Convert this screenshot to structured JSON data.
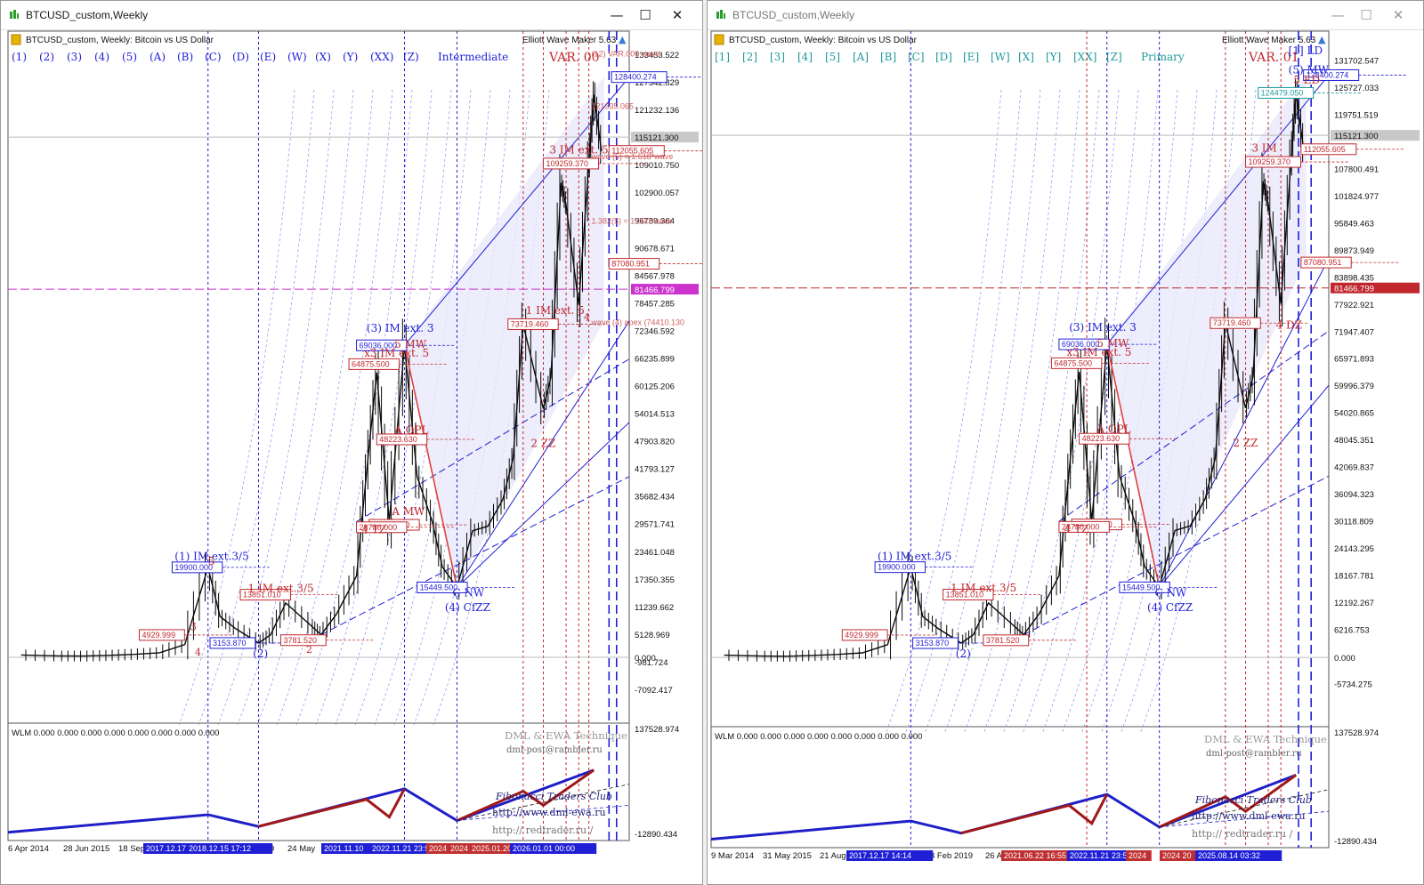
{
  "left": {
    "window_title": "BTCUSD_custom,Weekly",
    "chart_header": "BTCUSD_custom, Weekly:  Bitcoin vs US Dollar",
    "indicator_name": "Elliott Wave Maker 5.63",
    "wave_buttons": [
      "(1)",
      "(2)",
      "(3)",
      "(4)",
      "(5)",
      "(A)",
      "(B)",
      "(C)",
      "(D)",
      "(E)",
      "(W)",
      "(X)",
      "(Y)",
      "(XX)",
      "(Z)"
    ],
    "degree": "Intermediate",
    "var_label": "VAR. 00",
    "price_ticks": [
      "133453.522",
      "127342.829",
      "121232.136",
      "115121.300",
      "109010.750",
      "102900.057",
      "96789.364",
      "90678.671",
      "84567.978",
      "81466.799",
      "78457.285",
      "72346.592",
      "66235.899",
      "60125.206",
      "54014.513",
      "47903.820",
      "41793.127",
      "35682.434",
      "29571.741",
      "23461.048",
      "17350.355",
      "11239.662",
      "5128.969",
      "0.000",
      "-981.724",
      "-7092.417"
    ],
    "price_current": "115121.300",
    "price_level": "81466.799",
    "date_labels": [
      "6 Apr 2014",
      "28 Jun 2015",
      "18 Sep",
      "2019",
      "24 May"
    ],
    "date_boxes": [
      "2017.12.17",
      "2018.12.15 17:12",
      "2021.11.10",
      "2022.11.21 23:5",
      "2024",
      "2024",
      "2025.01.20",
      "2026.01.01 00:00"
    ],
    "wlm_header": "WLM 0.000 0.000 0.000 0.000 0.000 0.000 0.000 0.000",
    "wlm_ticks": [
      "137528.974",
      "-12890.434"
    ],
    "price_labels": [
      "128400.274",
      "112055.605",
      "109259.370",
      "87080.951",
      "73719.460",
      "69036.000",
      "64875.500",
      "48223.630",
      "29319.500",
      "28780.000",
      "19900.000",
      "15449.500",
      "13851.010",
      "4929.999",
      "3153.870",
      "3781.520",
      "0.000"
    ],
    "wave_labels": {
      "im1": "(1) IM ext.3/5",
      "im3": "(3) IM ext. 3",
      "im4": "(4) CfZZ",
      "cnw": "C NW",
      "x3": "x3 IM ext. 5",
      "aopl": "A OPL",
      "tz": "4 TZ",
      "mw": "5 MW",
      "mw2": "A MW",
      "im1b": "1 IM ext.3/5",
      "im5": "1 IM ext. 5",
      "im3b": "3 IM ext. 5",
      "zz": "2 ZZ",
      "w4": "4",
      "w5": "5",
      "w3": "3",
      "w2": "2",
      "w4b": "4",
      "w2c": "(2)"
    },
    "annotations": [
      "(12) VAR.000 wave",
      "121335.065",
      "wave (5) = 1.618*wave",
      "1.382(5) = 1.000*wave",
      "wave (4) apex (74410.130"
    ],
    "credits": {
      "l1": "DML & EWA Technique",
      "l2": "dml-post@rambler.ru",
      "l3": "Fibonacci   Traders   Club",
      "l4": "http://www.dml-ewa.ru",
      "l5": "http://  redtrader.ru  /"
    }
  },
  "right": {
    "window_title": "BTCUSD_custom,Weekly",
    "chart_header": "BTCUSD_custom, Weekly:  Bitcoin vs US Dollar",
    "indicator_name": "Elliott Wave Maker 5.63",
    "wave_buttons": [
      "[1]",
      "[2]",
      "[3]",
      "[4]",
      "[5]",
      "[A]",
      "[B]",
      "[C]",
      "[D]",
      "[E]",
      "[W]",
      "[X]",
      "[Y]",
      "[XX]",
      "[Z]"
    ],
    "degree": "Primary",
    "var_label": "VAR. 01",
    "price_ticks": [
      "131702.547",
      "125727.033",
      "119751.519",
      "115121.300",
      "107800.491",
      "101824.977",
      "95849.463",
      "89873.949",
      "83898.435",
      "81466.799",
      "77922.921",
      "71947.407",
      "65971.893",
      "59996.379",
      "54020.865",
      "48045.351",
      "42069.837",
      "36094.323",
      "30118.809",
      "24143.295",
      "18167.781",
      "12192.267",
      "6216.753",
      "0.000",
      "-5734.275"
    ],
    "price_current": "115121.300",
    "price_level": "81466.799",
    "date_labels": [
      "9 Mar 2014",
      "31 May 2015",
      "21 Aug",
      "3 Feb 2019",
      "26 A"
    ],
    "date_boxes": [
      "2017.12.17 14:14",
      "2021.06.22 16:55",
      "2022.11.21 23:5",
      "2024",
      "2024 20",
      "2025.08.14 03:32"
    ],
    "wlm_header": "WLM 0.000 0.000 0.000 0.000 0.000 0.000 0.000 0.000",
    "wlm_ticks": [
      "137528.974",
      "-12890.434"
    ],
    "price_labels": [
      "124479.050",
      "128400.274",
      "109259.370",
      "112055.605",
      "87080.951",
      "73719.460",
      "69036.000",
      "64875.500",
      "48223.630",
      "29319.500",
      "28780.000",
      "19900.000",
      "15449.500",
      "13851.010",
      "4929.999",
      "3153.870",
      "3781.520"
    ],
    "wave_labels": {
      "top": "[1] LD",
      "w5": "(5) MW",
      "ed": "5 ED",
      "dz": "4 DZ",
      "im3": "(3) IM ext. 3",
      "im1": "(1) IM ext.3/5",
      "im4": "(4) CfZZ",
      "cnw": "C NW",
      "x3": "x3 IM ext. 5",
      "aopl": "A OPL",
      "tz": "4 TZ",
      "mw": "5 MW",
      "im1b": "1 IM ext.3/5",
      "im3b": "3 IM",
      "zz": "2 ZZ",
      "w2c": "(2)"
    },
    "credits": {
      "l1": "DML & EWA Technique",
      "l2": "dml-post@rambler.ru",
      "l3": "Fibonacci   Traders   Club",
      "l4": "http://www.dml-ewa.ru",
      "l5": "http://  redtrader.ru  /"
    }
  },
  "colors": {
    "blue": "#1f1fd6",
    "red": "#c0282e",
    "magenta": "#cc33cc",
    "band": "#e8e8fb",
    "dark": "#0a0a0a"
  },
  "chart_data": {
    "type": "line",
    "title": "BTCUSD_custom, Weekly:  Bitcoin vs US Dollar",
    "x": [
      2014.26,
      2015.0,
      2015.5,
      2016.0,
      2016.5,
      2017.0,
      2017.5,
      2017.96,
      2018.2,
      2018.5,
      2018.96,
      2019.2,
      2019.5,
      2020.0,
      2020.2,
      2020.5,
      2020.9,
      2021.1,
      2021.3,
      2021.55,
      2021.85,
      2022.1,
      2022.4,
      2022.6,
      2022.89,
      2023.2,
      2023.5,
      2023.8,
      2024.0,
      2024.2,
      2024.6,
      2024.75,
      2024.95,
      2025.05,
      2025.3,
      2025.5,
      2025.6,
      2025.75
    ],
    "series": [
      {
        "values": [
          500,
          300,
          260,
          430,
          650,
          1000,
          2800,
          19900,
          9000,
          6400,
          3153.87,
          5000,
          12000,
          7000,
          5000,
          9500,
          18000,
          41000,
          63000,
          30000,
          69036,
          40000,
          30000,
          20000,
          15449.5,
          28000,
          29000,
          35000,
          44000,
          73719.46,
          55000,
          62000,
          105000,
          100000,
          78000,
          109259.37,
          124479.05,
          112000
        ]
      }
    ],
    "y_range": [
      -7092.417,
      133453.522
    ],
    "price_level_line": 81466.799,
    "grid": false
  }
}
